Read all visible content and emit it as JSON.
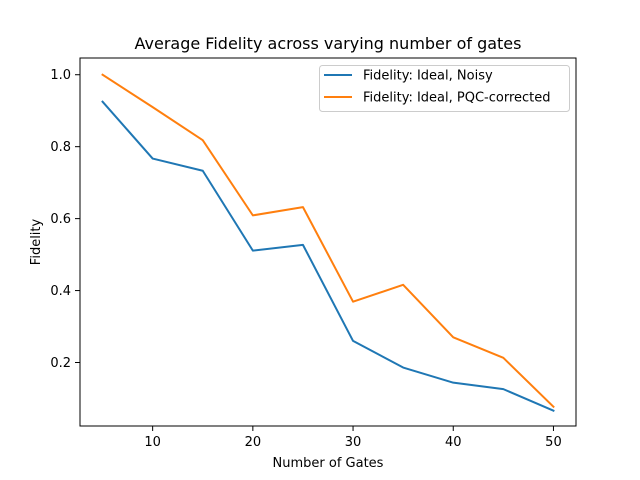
{
  "chart_data": {
    "type": "line",
    "title": "Average Fidelity across varying number of gates",
    "xlabel": "Number of Gates",
    "ylabel": "Fidelity",
    "x": [
      5,
      10,
      15,
      20,
      25,
      30,
      35,
      40,
      45,
      50
    ],
    "xlim": [
      2.75,
      52.25
    ],
    "ylim": [
      0.0235,
      1.0465
    ],
    "xticks": [
      10,
      20,
      30,
      40,
      50
    ],
    "yticks": [
      0.2,
      0.4,
      0.6,
      0.8,
      1.0
    ],
    "xtick_labels": [
      "10",
      "20",
      "30",
      "40",
      "50"
    ],
    "ytick_labels": [
      "0.2",
      "0.4",
      "0.6",
      "0.8",
      "1.0"
    ],
    "grid": false,
    "legend_position": "top-right",
    "series": [
      {
        "name": "Fidelity: Ideal, Noisy",
        "color": "#1f77b4",
        "values": [
          0.925,
          0.767,
          0.733,
          0.511,
          0.527,
          0.26,
          0.186,
          0.144,
          0.126,
          0.066
        ]
      },
      {
        "name": "Fidelity: Ideal, PQC-corrected",
        "color": "#ff7f0e",
        "values": [
          1.0,
          0.91,
          0.818,
          0.609,
          0.632,
          0.369,
          0.416,
          0.27,
          0.213,
          0.077
        ]
      }
    ]
  }
}
